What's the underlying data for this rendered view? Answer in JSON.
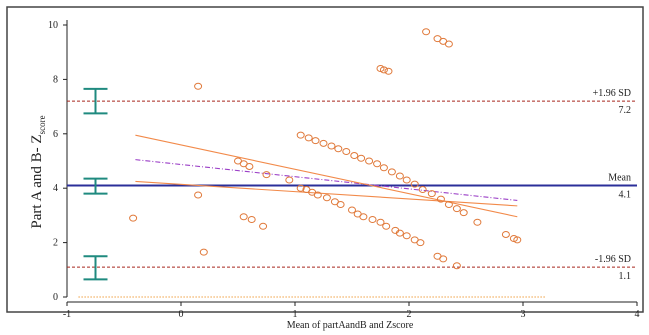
{
  "chart_data": {
    "type": "scatter",
    "title": "",
    "xlabel": "Mean of partAandB and Zscore",
    "ylabel": {
      "main": "Part A and B- Z",
      "sub": "score"
    },
    "xlim": [
      -1,
      4
    ],
    "ylim": [
      0,
      10
    ],
    "xticks": [
      -1,
      0,
      1,
      2,
      3,
      4
    ],
    "xtick_labels": [
      "-1",
      "0",
      "1",
      "2",
      "3",
      "4"
    ],
    "yticks": [
      0,
      2,
      4,
      6,
      8,
      10
    ],
    "ytick_labels": [
      "0",
      "2",
      "4",
      "6",
      "8",
      "10"
    ],
    "grid": false,
    "colors": {
      "points": "#e0793a",
      "mean_line": "#2b2f9a",
      "sd_lines": "#a6261c",
      "regression": "#f28a4a",
      "regression_dashdot": "#9b3fc7",
      "error_bars": "#1f8a7f",
      "zero_line": "#f0a040",
      "frame": "#444444"
    },
    "reference_lines": {
      "upper": {
        "value": 7.2,
        "label": "+1.96 SD",
        "value_label": "7.2"
      },
      "mean": {
        "value": 4.1,
        "label": "Mean",
        "value_label": "4.1"
      },
      "lower": {
        "value": 1.1,
        "label": "-1.96 SD",
        "value_label": "1.1"
      }
    },
    "ci_bars": [
      {
        "x": -0.75,
        "low": 6.75,
        "high": 7.65
      },
      {
        "x": -0.75,
        "low": 3.8,
        "high": 4.35
      },
      {
        "x": -0.75,
        "low": 0.65,
        "high": 1.5
      }
    ],
    "regression_lines": [
      {
        "style": "dashdot",
        "x": [
          -0.4,
          2.95
        ],
        "y": [
          5.05,
          3.55
        ]
      },
      {
        "style": "solid",
        "x": [
          -0.4,
          2.95
        ],
        "y": [
          5.95,
          2.95
        ]
      },
      {
        "style": "solid",
        "x": [
          -0.4,
          2.95
        ],
        "y": [
          4.25,
          3.35
        ]
      }
    ],
    "zero_line": {
      "x": [
        -0.9,
        3.2
      ],
      "y": 0
    },
    "series": [
      {
        "points": [
          [
            2.15,
            9.75
          ],
          [
            2.25,
            9.5
          ],
          [
            2.3,
            9.4
          ],
          [
            2.35,
            9.3
          ],
          [
            1.75,
            8.4
          ],
          [
            1.78,
            8.35
          ],
          [
            1.82,
            8.3
          ],
          [
            0.15,
            7.75
          ],
          [
            1.05,
            5.95
          ],
          [
            1.12,
            5.85
          ],
          [
            1.18,
            5.75
          ],
          [
            1.25,
            5.65
          ],
          [
            1.32,
            5.55
          ],
          [
            1.38,
            5.45
          ],
          [
            1.45,
            5.35
          ],
          [
            1.52,
            5.2
          ],
          [
            1.58,
            5.1
          ],
          [
            1.65,
            5.0
          ],
          [
            1.72,
            4.9
          ],
          [
            1.78,
            4.75
          ],
          [
            1.85,
            4.6
          ],
          [
            1.92,
            4.45
          ],
          [
            1.98,
            4.3
          ],
          [
            2.05,
            4.15
          ],
          [
            2.12,
            3.95
          ],
          [
            2.2,
            3.8
          ],
          [
            2.28,
            3.6
          ],
          [
            2.35,
            3.4
          ],
          [
            2.42,
            3.25
          ],
          [
            2.48,
            3.1
          ],
          [
            0.5,
            5.0
          ],
          [
            0.55,
            4.9
          ],
          [
            0.6,
            4.8
          ],
          [
            0.75,
            4.5
          ],
          [
            0.95,
            4.3
          ],
          [
            1.05,
            4.0
          ],
          [
            1.1,
            3.95
          ],
          [
            1.15,
            3.85
          ],
          [
            1.2,
            3.75
          ],
          [
            1.28,
            3.65
          ],
          [
            1.35,
            3.5
          ],
          [
            1.4,
            3.4
          ],
          [
            1.5,
            3.2
          ],
          [
            1.55,
            3.05
          ],
          [
            1.6,
            2.95
          ],
          [
            1.68,
            2.85
          ],
          [
            1.75,
            2.75
          ],
          [
            1.8,
            2.6
          ],
          [
            1.88,
            2.45
          ],
          [
            1.92,
            2.35
          ],
          [
            1.98,
            2.25
          ],
          [
            2.05,
            2.1
          ],
          [
            2.1,
            2.0
          ],
          [
            0.15,
            3.75
          ],
          [
            -0.42,
            2.9
          ],
          [
            0.55,
            2.95
          ],
          [
            0.62,
            2.85
          ],
          [
            0.72,
            2.6
          ],
          [
            0.2,
            1.65
          ],
          [
            2.6,
            2.75
          ],
          [
            2.85,
            2.3
          ],
          [
            2.92,
            2.15
          ],
          [
            2.95,
            2.1
          ],
          [
            2.25,
            1.5
          ],
          [
            2.3,
            1.4
          ],
          [
            2.42,
            1.15
          ]
        ]
      }
    ]
  }
}
